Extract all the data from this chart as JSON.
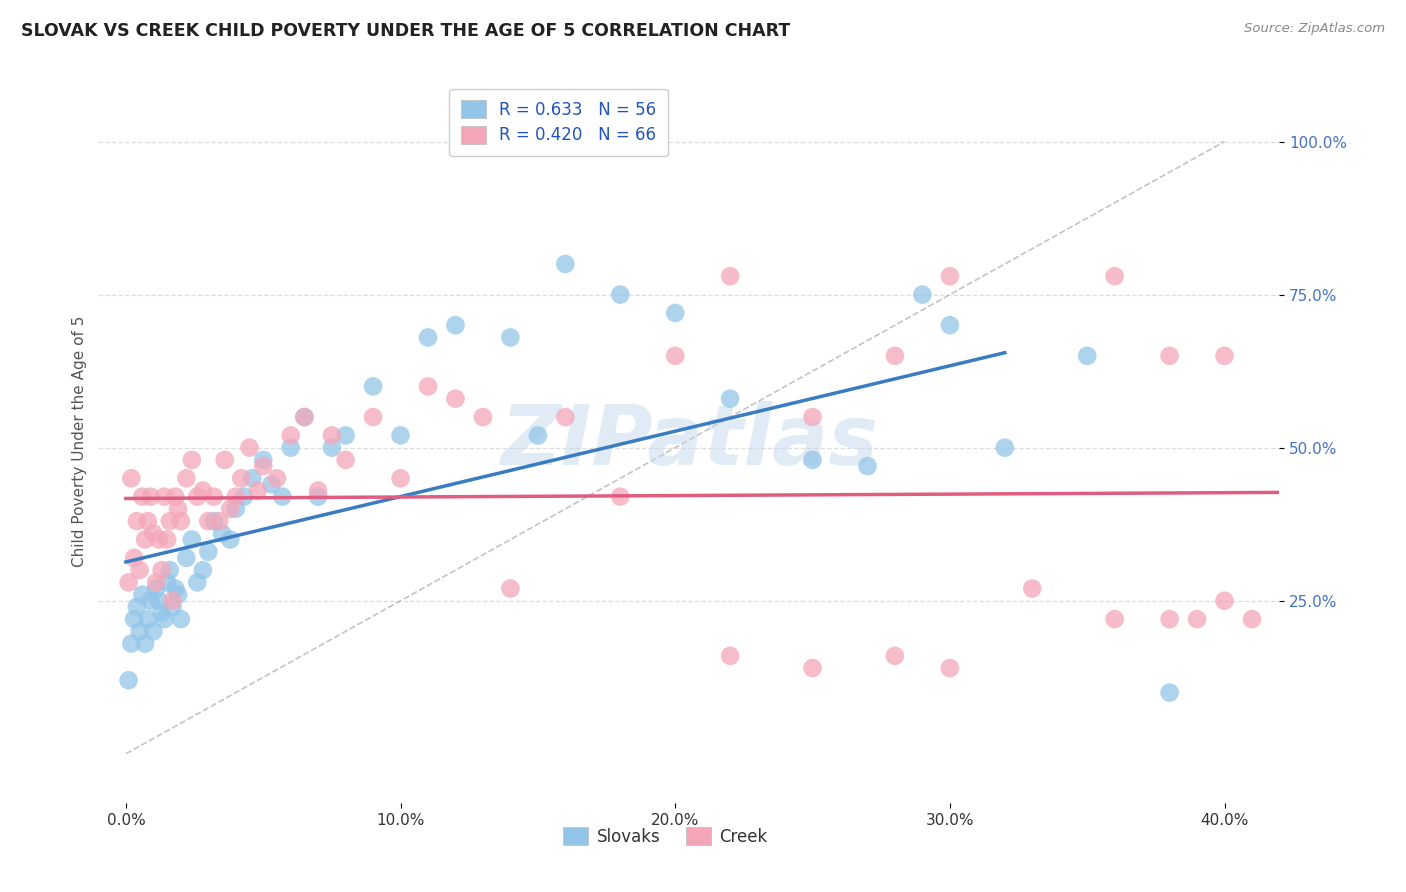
{
  "title": "SLOVAK VS CREEK CHILD POVERTY UNDER THE AGE OF 5 CORRELATION CHART",
  "source": "Source: ZipAtlas.com",
  "ylabel": "Child Poverty Under the Age of 5",
  "ytick_vals": [
    0.25,
    0.5,
    0.75,
    1.0
  ],
  "ytick_labels": [
    "25.0%",
    "50.0%",
    "75.0%",
    "100.0%"
  ],
  "xtick_vals": [
    0.0,
    0.1,
    0.2,
    0.3,
    0.4
  ],
  "xtick_labels": [
    "0.0%",
    "10.0%",
    "20.0%",
    "30.0%",
    "40.0%"
  ],
  "xlim": [
    -0.01,
    0.42
  ],
  "ylim": [
    -0.08,
    1.1
  ],
  "slovak_color": "#92c5e8",
  "creek_color": "#f4a6b8",
  "slovak_line_color": "#3a7cc1",
  "creek_line_color": "#e05c80",
  "slovak_R": 0.633,
  "slovak_N": 56,
  "creek_R": 0.42,
  "creek_N": 66,
  "diagonal_color": "#aaaaaa",
  "background_color": "#ffffff",
  "grid_color": "#dddddd",
  "legend_label_slovaks": "Slovaks",
  "legend_label_creek": "Creek",
  "watermark": "ZIPatlas",
  "slovak_scatter_x": [
    0.001,
    0.002,
    0.003,
    0.004,
    0.005,
    0.006,
    0.007,
    0.008,
    0.009,
    0.01,
    0.011,
    0.012,
    0.013,
    0.014,
    0.015,
    0.016,
    0.017,
    0.018,
    0.019,
    0.02,
    0.022,
    0.024,
    0.026,
    0.028,
    0.03,
    0.032,
    0.035,
    0.038,
    0.04,
    0.043,
    0.046,
    0.05,
    0.053,
    0.057,
    0.06,
    0.065,
    0.07,
    0.075,
    0.08,
    0.09,
    0.1,
    0.11,
    0.12,
    0.14,
    0.15,
    0.16,
    0.18,
    0.2,
    0.22,
    0.25,
    0.27,
    0.29,
    0.3,
    0.32,
    0.35,
    0.38
  ],
  "slovak_scatter_y": [
    0.12,
    0.18,
    0.22,
    0.24,
    0.2,
    0.26,
    0.18,
    0.22,
    0.25,
    0.2,
    0.27,
    0.25,
    0.23,
    0.22,
    0.28,
    0.3,
    0.24,
    0.27,
    0.26,
    0.22,
    0.32,
    0.35,
    0.28,
    0.3,
    0.33,
    0.38,
    0.36,
    0.35,
    0.4,
    0.42,
    0.45,
    0.48,
    0.44,
    0.42,
    0.5,
    0.55,
    0.42,
    0.5,
    0.52,
    0.6,
    0.52,
    0.68,
    0.7,
    0.68,
    0.52,
    0.8,
    0.75,
    0.72,
    0.58,
    0.48,
    0.47,
    0.75,
    0.7,
    0.5,
    0.65,
    0.1
  ],
  "creek_scatter_x": [
    0.001,
    0.002,
    0.003,
    0.004,
    0.005,
    0.006,
    0.007,
    0.008,
    0.009,
    0.01,
    0.011,
    0.012,
    0.013,
    0.014,
    0.015,
    0.016,
    0.017,
    0.018,
    0.019,
    0.02,
    0.022,
    0.024,
    0.026,
    0.028,
    0.03,
    0.032,
    0.034,
    0.036,
    0.038,
    0.04,
    0.042,
    0.045,
    0.048,
    0.05,
    0.055,
    0.06,
    0.065,
    0.07,
    0.075,
    0.08,
    0.09,
    0.1,
    0.11,
    0.12,
    0.13,
    0.14,
    0.16,
    0.18,
    0.2,
    0.22,
    0.25,
    0.28,
    0.3,
    0.33,
    0.36,
    0.38,
    0.39,
    0.4,
    0.41,
    0.22,
    0.25,
    0.28,
    0.3,
    0.36,
    0.38,
    0.4
  ],
  "creek_scatter_y": [
    0.28,
    0.45,
    0.32,
    0.38,
    0.3,
    0.42,
    0.35,
    0.38,
    0.42,
    0.36,
    0.28,
    0.35,
    0.3,
    0.42,
    0.35,
    0.38,
    0.25,
    0.42,
    0.4,
    0.38,
    0.45,
    0.48,
    0.42,
    0.43,
    0.38,
    0.42,
    0.38,
    0.48,
    0.4,
    0.42,
    0.45,
    0.5,
    0.43,
    0.47,
    0.45,
    0.52,
    0.55,
    0.43,
    0.52,
    0.48,
    0.55,
    0.45,
    0.6,
    0.58,
    0.55,
    0.27,
    0.55,
    0.42,
    0.65,
    0.78,
    0.55,
    0.65,
    0.78,
    0.27,
    0.78,
    0.65,
    0.22,
    0.65,
    0.22,
    0.16,
    0.14,
    0.16,
    0.14,
    0.22,
    0.22,
    0.25
  ]
}
